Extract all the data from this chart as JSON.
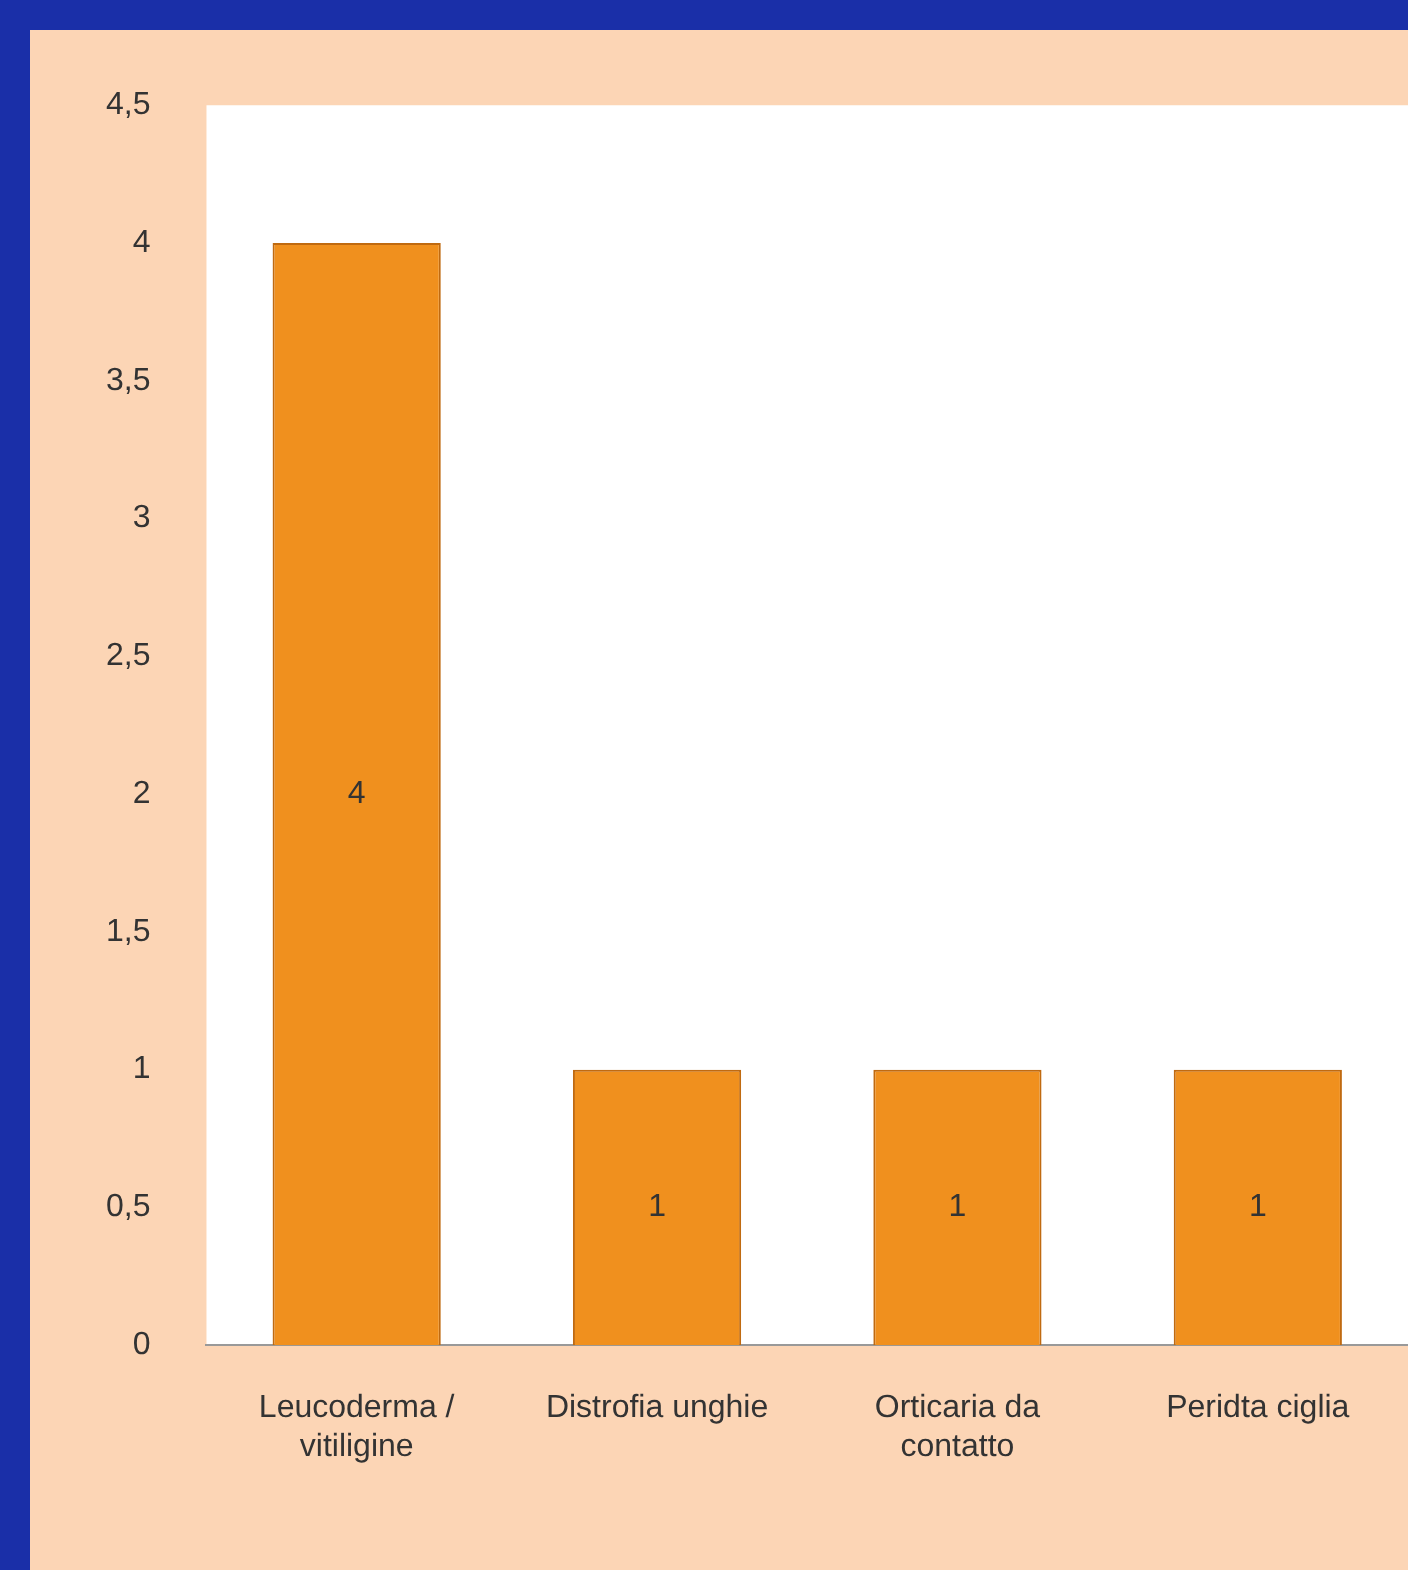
{
  "chart_data": {
    "type": "bar",
    "categories": [
      "Leucoderma / vitiligine",
      "Distrofia unghie",
      "Orticaria da contatto",
      "Peridta ciglia"
    ],
    "values": [
      4,
      1,
      1,
      1
    ],
    "color": "#f0901e",
    "data_labels": true,
    "grid": false,
    "legend": false,
    "ylim": [
      0,
      4.5
    ],
    "yticks": [
      0,
      {
        "value": 0.5,
        "label": "0,5"
      },
      1,
      {
        "value": 1.5,
        "label": "1,5"
      },
      2,
      {
        "value": 2.5,
        "label": "2,5"
      },
      3,
      {
        "value": 3.5,
        "label": "3,5"
      },
      4,
      {
        "value": 4.5,
        "label": "4,5"
      }
    ]
  }
}
